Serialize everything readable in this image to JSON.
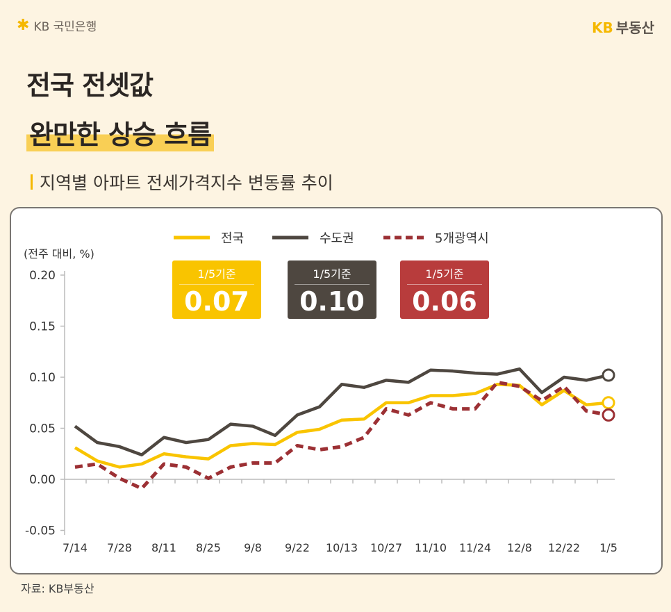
{
  "header": {
    "left_logo": "KB 국민은행",
    "right_logo_kb": "KB",
    "right_logo_text": "부동산"
  },
  "title": {
    "line1": "전국 전셋값",
    "line2": "완만한 상승 흐름"
  },
  "subtitle": "지역별 아파트 전세가격지수 변동률 추이",
  "source": "자료: KB부동산",
  "badges": [
    {
      "label": "1/5기준",
      "value": "0.07",
      "color": "#f9c400"
    },
    {
      "label": "1/5기준",
      "value": "0.10",
      "color": "#4e4740"
    },
    {
      "label": "1/5기준",
      "value": "0.06",
      "color": "#b83c3c"
    }
  ],
  "chart_data": {
    "type": "line",
    "ylabel": "(전주 대비, %)",
    "ylim": [
      -0.05,
      0.2
    ],
    "yticks": [
      "0.20",
      "0.15",
      "0.10",
      "0.05",
      "0.00",
      "-0.05"
    ],
    "ytick_values": [
      0.2,
      0.15,
      0.1,
      0.05,
      0.0,
      -0.05
    ],
    "x": [
      "7/14",
      "7/21",
      "7/28",
      "8/4",
      "8/11",
      "8/18",
      "8/25",
      "9/1",
      "9/8",
      "9/15",
      "9/22",
      "9/29",
      "10/13",
      "10/20",
      "10/27",
      "11/3",
      "11/10",
      "11/17",
      "11/24",
      "12/1",
      "12/8",
      "12/15",
      "12/22",
      "12/29",
      "1/5"
    ],
    "xtick_labels": [
      "7/14",
      "7/28",
      "8/11",
      "8/25",
      "9/8",
      "9/22",
      "10/13",
      "10/27",
      "11/10",
      "11/24",
      "12/8",
      "12/22",
      "1/5"
    ],
    "legend_position": "top",
    "grid": false,
    "series": [
      {
        "name": "전국",
        "color": "#f9c400",
        "style": "solid",
        "values": [
          0.031,
          0.018,
          0.012,
          0.015,
          0.025,
          0.022,
          0.02,
          0.033,
          0.035,
          0.034,
          0.046,
          0.049,
          0.058,
          0.059,
          0.075,
          0.075,
          0.082,
          0.082,
          0.084,
          0.093,
          0.092,
          0.073,
          0.087,
          0.073,
          0.075
        ]
      },
      {
        "name": "수도권",
        "color": "#4e4740",
        "style": "solid",
        "values": [
          0.052,
          0.036,
          0.032,
          0.024,
          0.041,
          0.036,
          0.039,
          0.054,
          0.052,
          0.043,
          0.063,
          0.071,
          0.093,
          0.09,
          0.097,
          0.095,
          0.107,
          0.106,
          0.104,
          0.103,
          0.108,
          0.085,
          0.1,
          0.097,
          0.102
        ]
      },
      {
        "name": "5개광역시",
        "color": "#9c3034",
        "style": "dashed",
        "values": [
          0.012,
          0.015,
          0.001,
          -0.009,
          0.015,
          0.012,
          0.001,
          0.012,
          0.016,
          0.016,
          0.033,
          0.029,
          0.032,
          0.041,
          0.069,
          0.063,
          0.075,
          0.069,
          0.069,
          0.095,
          0.091,
          0.077,
          0.091,
          0.067,
          0.063
        ]
      }
    ]
  }
}
